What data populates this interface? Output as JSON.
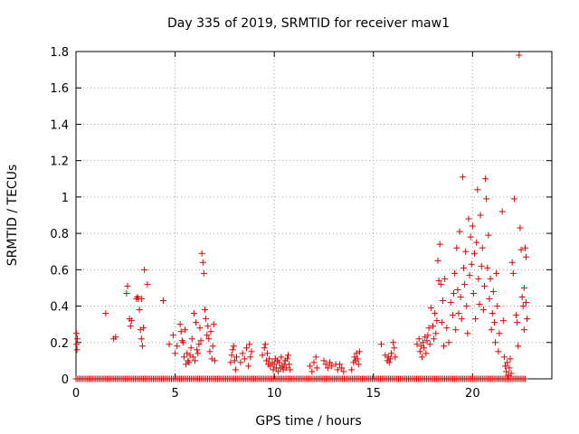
{
  "chart_data": {
    "type": "scatter",
    "title": "Day 335 of 2019, SRMTID for receiver maw1",
    "xlabel": "GPS time / hours",
    "ylabel": "SRMTID / TECUs",
    "xlim": [
      0,
      24
    ],
    "ylim": [
      0,
      1.8
    ],
    "xticks": [
      0,
      5,
      10,
      15,
      20
    ],
    "yticks": [
      0,
      0.2,
      0.4,
      0.6,
      0.8,
      1,
      1.2,
      1.4,
      1.6,
      1.8
    ],
    "xtick_labels": [
      "0",
      "5",
      "10",
      "15",
      "20"
    ],
    "ytick_labels": [
      "0",
      "0.2",
      "0.4",
      "0.6",
      "0.8",
      "1",
      "1.2",
      "1.4",
      "1.6",
      "1.8"
    ],
    "grid": true,
    "marker": "+",
    "color": "#dd0000",
    "baseline_value": 0,
    "baseline_range": [
      0,
      22.7
    ],
    "baseline_step": 0.083,
    "series": [
      {
        "name": "SRMTID",
        "points": [
          [
            0.02,
            0.25
          ],
          [
            0.03,
            0.19
          ],
          [
            0.05,
            0.16
          ],
          [
            0.07,
            0.22
          ],
          [
            1.5,
            0.36
          ],
          [
            1.9,
            0.22
          ],
          [
            2.0,
            0.23
          ],
          [
            2.55,
            0.47
          ],
          [
            2.6,
            0.51
          ],
          [
            2.7,
            0.33
          ],
          [
            2.75,
            0.29
          ],
          [
            2.8,
            0.32
          ],
          [
            3.05,
            0.44
          ],
          [
            3.1,
            0.45
          ],
          [
            3.15,
            0.44
          ],
          [
            3.2,
            0.38
          ],
          [
            3.25,
            0.27
          ],
          [
            3.3,
            0.44
          ],
          [
            3.3,
            0.22
          ],
          [
            3.35,
            0.18
          ],
          [
            3.4,
            0.28
          ],
          [
            3.45,
            0.6
          ],
          [
            3.6,
            0.52
          ],
          [
            4.4,
            0.43
          ],
          [
            4.7,
            0.19
          ],
          [
            4.9,
            0.24
          ],
          [
            5.0,
            0.14
          ],
          [
            5.1,
            0.18
          ],
          [
            5.25,
            0.3
          ],
          [
            5.3,
            0.26
          ],
          [
            5.35,
            0.21
          ],
          [
            5.4,
            0.2
          ],
          [
            5.45,
            0.12
          ],
          [
            5.5,
            0.27
          ],
          [
            5.55,
            0.08
          ],
          [
            5.6,
            0.14
          ],
          [
            5.65,
            0.1
          ],
          [
            5.7,
            0.09
          ],
          [
            5.75,
            0.13
          ],
          [
            5.8,
            0.17
          ],
          [
            5.85,
            0.22
          ],
          [
            5.9,
            0.12
          ],
          [
            5.95,
            0.36
          ],
          [
            6.0,
            0.1
          ],
          [
            6.05,
            0.31
          ],
          [
            6.1,
            0.16
          ],
          [
            6.15,
            0.14
          ],
          [
            6.2,
            0.19
          ],
          [
            6.25,
            0.28
          ],
          [
            6.3,
            0.21
          ],
          [
            6.35,
            0.69
          ],
          [
            6.4,
            0.64
          ],
          [
            6.45,
            0.58
          ],
          [
            6.5,
            0.38
          ],
          [
            6.55,
            0.33
          ],
          [
            6.6,
            0.24
          ],
          [
            6.65,
            0.29
          ],
          [
            6.7,
            0.22
          ],
          [
            6.75,
            0.15
          ],
          [
            6.8,
            0.26
          ],
          [
            6.85,
            0.11
          ],
          [
            6.9,
            0.18
          ],
          [
            6.95,
            0.3
          ],
          [
            7.0,
            0.1
          ],
          [
            7.8,
            0.09
          ],
          [
            7.85,
            0.13
          ],
          [
            7.9,
            0.16
          ],
          [
            7.95,
            0.18
          ],
          [
            8.0,
            0.1
          ],
          [
            8.05,
            0.05
          ],
          [
            8.1,
            0.12
          ],
          [
            8.3,
            0.09
          ],
          [
            8.4,
            0.14
          ],
          [
            8.5,
            0.11
          ],
          [
            8.6,
            0.17
          ],
          [
            8.7,
            0.07
          ],
          [
            8.75,
            0.19
          ],
          [
            8.8,
            0.12
          ],
          [
            8.85,
            0.15
          ],
          [
            9.4,
            0.13
          ],
          [
            9.5,
            0.17
          ],
          [
            9.55,
            0.19
          ],
          [
            9.6,
            0.1
          ],
          [
            9.65,
            0.14
          ],
          [
            9.7,
            0.08
          ],
          [
            9.75,
            0.11
          ],
          [
            9.8,
            0.07
          ],
          [
            9.9,
            0.09
          ],
          [
            9.95,
            0.05
          ],
          [
            10.0,
            0.08
          ],
          [
            10.05,
            0.11
          ],
          [
            10.1,
            0.06
          ],
          [
            10.15,
            0.1
          ],
          [
            10.2,
            0.04
          ],
          [
            10.25,
            0.09
          ],
          [
            10.3,
            0.06
          ],
          [
            10.35,
            0.12
          ],
          [
            10.4,
            0.07
          ],
          [
            10.45,
            0.05
          ],
          [
            10.5,
            0.08
          ],
          [
            10.55,
            0.1
          ],
          [
            10.6,
            0.06
          ],
          [
            10.65,
            0.11
          ],
          [
            10.7,
            0.13
          ],
          [
            10.75,
            0.08
          ],
          [
            10.8,
            0.05
          ],
          [
            11.8,
            0.07
          ],
          [
            11.9,
            0.04
          ],
          [
            12.0,
            0.09
          ],
          [
            12.1,
            0.12
          ],
          [
            12.15,
            0.06
          ],
          [
            12.5,
            0.1
          ],
          [
            12.6,
            0.08
          ],
          [
            12.7,
            0.06
          ],
          [
            12.8,
            0.09
          ],
          [
            12.9,
            0.07
          ],
          [
            13.1,
            0.08
          ],
          [
            13.2,
            0.05
          ],
          [
            13.3,
            0.08
          ],
          [
            13.4,
            0.06
          ],
          [
            13.5,
            0.04
          ],
          [
            13.9,
            0.05
          ],
          [
            14.0,
            0.09
          ],
          [
            14.05,
            0.12
          ],
          [
            14.1,
            0.1
          ],
          [
            14.15,
            0.14
          ],
          [
            14.2,
            0.11
          ],
          [
            14.25,
            0.08
          ],
          [
            14.3,
            0.15
          ],
          [
            15.4,
            0.19
          ],
          [
            15.6,
            0.13
          ],
          [
            15.7,
            0.1
          ],
          [
            15.75,
            0.12
          ],
          [
            15.8,
            0.09
          ],
          [
            15.85,
            0.11
          ],
          [
            15.9,
            0.14
          ],
          [
            16.0,
            0.2
          ],
          [
            16.05,
            0.17
          ],
          [
            16.1,
            0.12
          ],
          [
            17.2,
            0.19
          ],
          [
            17.3,
            0.22
          ],
          [
            17.35,
            0.15
          ],
          [
            17.4,
            0.18
          ],
          [
            17.45,
            0.12
          ],
          [
            17.5,
            0.2
          ],
          [
            17.55,
            0.17
          ],
          [
            17.6,
            0.23
          ],
          [
            17.65,
            0.14
          ],
          [
            17.7,
            0.21
          ],
          [
            17.75,
            0.24
          ],
          [
            17.8,
            0.28
          ],
          [
            17.85,
            0.19
          ],
          [
            17.9,
            0.39
          ],
          [
            18.0,
            0.29
          ],
          [
            18.05,
            0.22
          ],
          [
            18.1,
            0.36
          ],
          [
            18.15,
            0.25
          ],
          [
            18.2,
            0.32
          ],
          [
            18.25,
            0.65
          ],
          [
            18.3,
            0.54
          ],
          [
            18.35,
            0.74
          ],
          [
            18.4,
            0.52
          ],
          [
            18.45,
            0.31
          ],
          [
            18.5,
            0.43
          ],
          [
            18.55,
            0.18
          ],
          [
            18.6,
            0.55
          ],
          [
            18.7,
            0.28
          ],
          [
            18.8,
            0.2
          ],
          [
            18.9,
            0.42
          ],
          [
            19.0,
            0.35
          ],
          [
            19.05,
            0.47
          ],
          [
            19.1,
            0.58
          ],
          [
            19.15,
            0.27
          ],
          [
            19.2,
            0.72
          ],
          [
            19.25,
            0.49
          ],
          [
            19.3,
            0.36
          ],
          [
            19.35,
            0.81
          ],
          [
            19.4,
            0.45
          ],
          [
            19.45,
            0.33
          ],
          [
            19.5,
            1.11
          ],
          [
            19.55,
            0.61
          ],
          [
            19.6,
            0.52
          ],
          [
            19.65,
            0.7
          ],
          [
            19.7,
            0.4
          ],
          [
            19.75,
            0.25
          ],
          [
            19.8,
            0.88
          ],
          [
            19.85,
            0.57
          ],
          [
            19.9,
            0.78
          ],
          [
            19.95,
            0.63
          ],
          [
            20.0,
            0.84
          ],
          [
            20.05,
            0.47
          ],
          [
            20.1,
            0.69
          ],
          [
            20.15,
            0.33
          ],
          [
            20.2,
            0.75
          ],
          [
            20.25,
            1.04
          ],
          [
            20.3,
            0.55
          ],
          [
            20.35,
            0.41
          ],
          [
            20.4,
            0.9
          ],
          [
            20.45,
            0.62
          ],
          [
            20.5,
            0.72
          ],
          [
            20.55,
            0.38
          ],
          [
            20.6,
            0.51
          ],
          [
            20.65,
            1.1
          ],
          [
            20.7,
            0.99
          ],
          [
            20.75,
            0.61
          ],
          [
            20.8,
            0.79
          ],
          [
            20.85,
            0.44
          ],
          [
            20.9,
            0.55
          ],
          [
            20.95,
            0.27
          ],
          [
            21.0,
            0.36
          ],
          [
            21.05,
            0.48
          ],
          [
            21.1,
            0.31
          ],
          [
            21.15,
            0.2
          ],
          [
            21.2,
            0.58
          ],
          [
            21.25,
            0.4
          ],
          [
            21.3,
            0.15
          ],
          [
            21.35,
            0.25
          ],
          [
            21.5,
            0.92
          ],
          [
            21.55,
            0.32
          ],
          [
            21.6,
            0.12
          ],
          [
            21.65,
            0.07
          ],
          [
            21.7,
            0.04
          ],
          [
            21.75,
            0.09
          ],
          [
            21.8,
            0.02
          ],
          [
            21.85,
            0.06
          ],
          [
            21.9,
            0.11
          ],
          [
            21.95,
            0.03
          ],
          [
            22.0,
            0.64
          ],
          [
            22.05,
            0.58
          ],
          [
            22.1,
            0.99
          ],
          [
            22.2,
            0.35
          ],
          [
            22.25,
            0.31
          ],
          [
            22.3,
            0.18
          ],
          [
            22.35,
            1.78
          ],
          [
            22.4,
            0.83
          ],
          [
            22.45,
            0.71
          ],
          [
            22.5,
            0.45
          ],
          [
            22.55,
            0.4
          ],
          [
            22.6,
            0.5
          ],
          [
            22.65,
            0.72
          ],
          [
            22.7,
            0.67
          ],
          [
            22.75,
            0.33
          ],
          [
            22.6,
            0.27
          ],
          [
            22.7,
            0.42
          ]
        ]
      }
    ]
  }
}
